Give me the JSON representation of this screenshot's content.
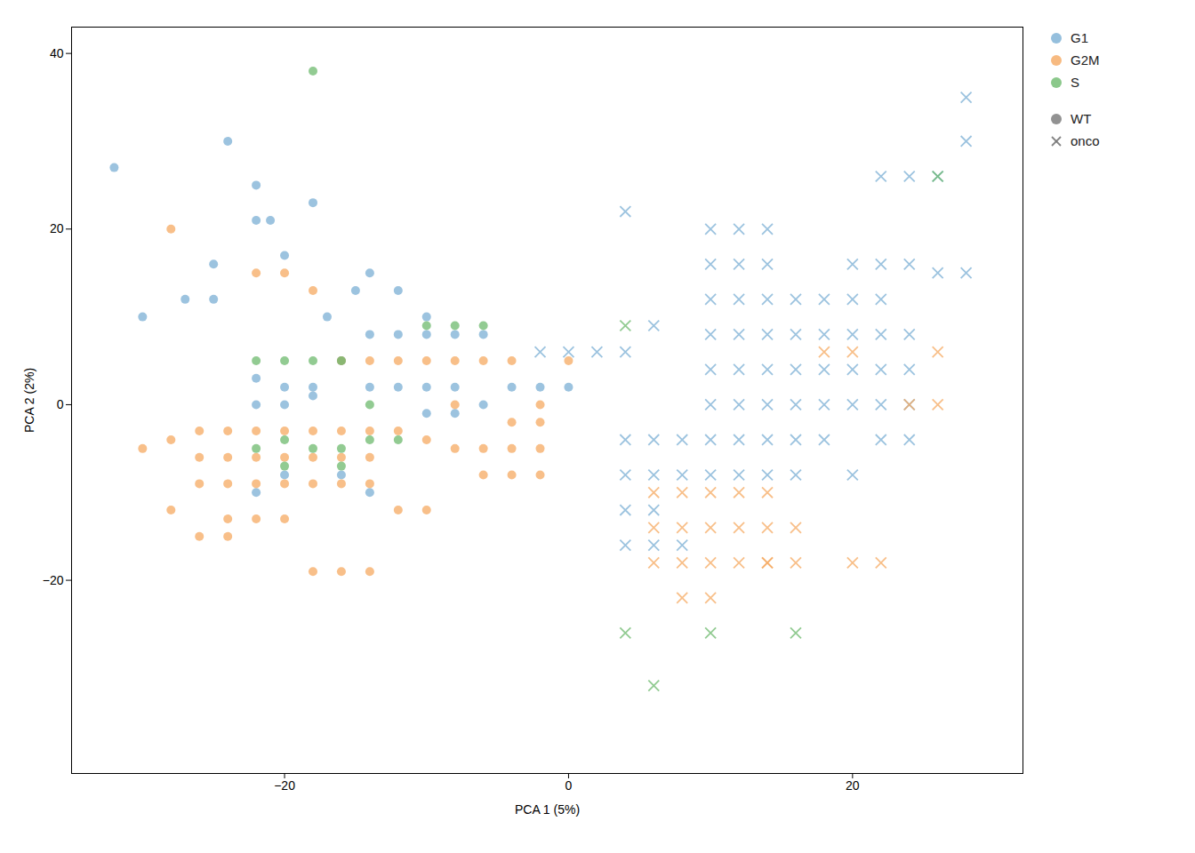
{
  "chart_data": {
    "type": "scatter",
    "xlabel": "PCA 1 (5%)",
    "ylabel": "PCA 2 (2%)",
    "xlim": [
      -35,
      32
    ],
    "ylim": [
      -42,
      43
    ],
    "xticks": [
      -20,
      0,
      20
    ],
    "yticks": [
      -20,
      0,
      20,
      40
    ],
    "grid": false,
    "legend": "upper right",
    "series": [
      {
        "name": "G1",
        "group": "WT",
        "color": "#7BAFD4",
        "marker": "circle",
        "values": [
          [
            -32,
            27
          ],
          [
            -24,
            30
          ],
          [
            -22,
            25
          ],
          [
            -21,
            21
          ],
          [
            -30,
            10
          ],
          [
            -22,
            21
          ],
          [
            -25,
            16
          ],
          [
            -20,
            17
          ],
          [
            -18,
            23
          ],
          [
            -27,
            12
          ],
          [
            -25,
            12
          ],
          [
            -17,
            10
          ],
          [
            -15,
            13
          ],
          [
            -14,
            15
          ],
          [
            -12,
            13
          ],
          [
            -10,
            10
          ],
          [
            -22,
            3
          ],
          [
            -20,
            2
          ],
          [
            -18,
            2
          ],
          [
            -16,
            5
          ],
          [
            -14,
            8
          ],
          [
            -12,
            8
          ],
          [
            -10,
            8
          ],
          [
            -8,
            8
          ],
          [
            -6,
            8
          ],
          [
            -22,
            0
          ],
          [
            -20,
            0
          ],
          [
            -18,
            1
          ],
          [
            -14,
            2
          ],
          [
            -12,
            2
          ],
          [
            -10,
            2
          ],
          [
            -8,
            2
          ],
          [
            -16,
            -8
          ],
          [
            -14,
            -10
          ],
          [
            -22,
            -10
          ],
          [
            -20,
            -8
          ],
          [
            -6,
            0
          ],
          [
            -4,
            2
          ],
          [
            -2,
            2
          ],
          [
            0,
            2
          ],
          [
            -8,
            -1
          ],
          [
            -10,
            -1
          ]
        ]
      },
      {
        "name": "G2M",
        "group": "WT",
        "color": "#F5A962",
        "marker": "circle",
        "values": [
          [
            -28,
            20
          ],
          [
            -26,
            -3
          ],
          [
            -24,
            -3
          ],
          [
            -22,
            -3
          ],
          [
            -20,
            -3
          ],
          [
            -18,
            -3
          ],
          [
            -16,
            -3
          ],
          [
            -14,
            -3
          ],
          [
            -12,
            -3
          ],
          [
            -28,
            -4
          ],
          [
            -26,
            -6
          ],
          [
            -24,
            -6
          ],
          [
            -22,
            -6
          ],
          [
            -20,
            -6
          ],
          [
            -18,
            -6
          ],
          [
            -16,
            -6
          ],
          [
            -14,
            -6
          ],
          [
            -26,
            -9
          ],
          [
            -24,
            -9
          ],
          [
            -22,
            -9
          ],
          [
            -20,
            -9
          ],
          [
            -18,
            -9
          ],
          [
            -16,
            -9
          ],
          [
            -14,
            -9
          ],
          [
            -28,
            -12
          ],
          [
            -24,
            -13
          ],
          [
            -22,
            -13
          ],
          [
            -20,
            -13
          ],
          [
            -18,
            -19
          ],
          [
            -16,
            -19
          ],
          [
            -14,
            -19
          ],
          [
            -30,
            -5
          ],
          [
            -22,
            15
          ],
          [
            -20,
            15
          ],
          [
            -18,
            13
          ],
          [
            -16,
            5
          ],
          [
            -14,
            5
          ],
          [
            -12,
            5
          ],
          [
            -10,
            5
          ],
          [
            -8,
            5
          ],
          [
            -8,
            0
          ],
          [
            -6,
            5
          ],
          [
            -4,
            5
          ],
          [
            -2,
            0
          ],
          [
            0,
            5
          ],
          [
            -4,
            -2
          ],
          [
            -2,
            -2
          ],
          [
            -10,
            -4
          ],
          [
            -8,
            -5
          ],
          [
            -6,
            -5
          ],
          [
            -4,
            -5
          ],
          [
            -2,
            -5
          ],
          [
            -12,
            -12
          ],
          [
            -10,
            -12
          ],
          [
            -6,
            -8
          ],
          [
            -4,
            -8
          ],
          [
            -2,
            -8
          ],
          [
            -26,
            -15
          ],
          [
            -24,
            -15
          ]
        ]
      },
      {
        "name": "S",
        "group": "WT",
        "color": "#6EBA6E",
        "marker": "circle",
        "values": [
          [
            -18,
            38
          ],
          [
            -16,
            5
          ],
          [
            -10,
            9
          ],
          [
            -8,
            9
          ],
          [
            -6,
            9
          ],
          [
            -22,
            5
          ],
          [
            -20,
            5
          ],
          [
            -18,
            5
          ],
          [
            -14,
            0
          ],
          [
            -12,
            -4
          ],
          [
            -20,
            -4
          ],
          [
            -22,
            -5
          ],
          [
            -20,
            -7
          ],
          [
            -16,
            -5
          ],
          [
            -14,
            -4
          ],
          [
            -18,
            -5
          ],
          [
            -16,
            -7
          ]
        ]
      },
      {
        "name": "G1",
        "group": "onco",
        "color": "#7BAFD4",
        "marker": "x",
        "values": [
          [
            4,
            22
          ],
          [
            -2,
            6
          ],
          [
            0,
            6
          ],
          [
            2,
            6
          ],
          [
            4,
            6
          ],
          [
            6,
            9
          ],
          [
            10,
            16
          ],
          [
            12,
            16
          ],
          [
            14,
            16
          ],
          [
            10,
            20
          ],
          [
            12,
            20
          ],
          [
            14,
            20
          ],
          [
            10,
            12
          ],
          [
            12,
            12
          ],
          [
            14,
            12
          ],
          [
            16,
            12
          ],
          [
            10,
            8
          ],
          [
            12,
            8
          ],
          [
            14,
            8
          ],
          [
            16,
            8
          ],
          [
            18,
            8
          ],
          [
            10,
            4
          ],
          [
            12,
            4
          ],
          [
            14,
            4
          ],
          [
            16,
            4
          ],
          [
            18,
            4
          ],
          [
            20,
            4
          ],
          [
            10,
            0
          ],
          [
            12,
            0
          ],
          [
            14,
            0
          ],
          [
            16,
            0
          ],
          [
            18,
            0
          ],
          [
            20,
            0
          ],
          [
            10,
            -4
          ],
          [
            12,
            -4
          ],
          [
            14,
            -4
          ],
          [
            16,
            -4
          ],
          [
            18,
            -4
          ],
          [
            10,
            -8
          ],
          [
            12,
            -8
          ],
          [
            14,
            -8
          ],
          [
            16,
            -8
          ],
          [
            4,
            -4
          ],
          [
            6,
            -4
          ],
          [
            8,
            -4
          ],
          [
            4,
            -8
          ],
          [
            6,
            -8
          ],
          [
            8,
            -8
          ],
          [
            4,
            -12
          ],
          [
            6,
            -12
          ],
          [
            4,
            -16
          ],
          [
            6,
            -16
          ],
          [
            8,
            -16
          ],
          [
            22,
            8
          ],
          [
            24,
            8
          ],
          [
            22,
            4
          ],
          [
            24,
            4
          ],
          [
            22,
            0
          ],
          [
            24,
            0
          ],
          [
            22,
            -4
          ],
          [
            24,
            -4
          ],
          [
            20,
            -8
          ],
          [
            22,
            16
          ],
          [
            22,
            12
          ],
          [
            20,
            12
          ],
          [
            18,
            12
          ],
          [
            20,
            8
          ],
          [
            20,
            16
          ],
          [
            24,
            16
          ],
          [
            26,
            26
          ],
          [
            22,
            26
          ],
          [
            24,
            26
          ],
          [
            28,
            35
          ],
          [
            28,
            30
          ],
          [
            26,
            15
          ],
          [
            28,
            15
          ]
        ]
      },
      {
        "name": "G2M",
        "group": "onco",
        "color": "#F5A962",
        "marker": "x",
        "values": [
          [
            6,
            -14
          ],
          [
            8,
            -14
          ],
          [
            10,
            -14
          ],
          [
            12,
            -14
          ],
          [
            6,
            -18
          ],
          [
            8,
            -18
          ],
          [
            10,
            -18
          ],
          [
            12,
            -18
          ],
          [
            14,
            -18
          ],
          [
            6,
            -10
          ],
          [
            8,
            -10
          ],
          [
            10,
            -10
          ],
          [
            12,
            -10
          ],
          [
            14,
            -10
          ],
          [
            18,
            6
          ],
          [
            20,
            6
          ],
          [
            14,
            -14
          ],
          [
            16,
            -14
          ],
          [
            14,
            -18
          ],
          [
            16,
            -18
          ],
          [
            8,
            -22
          ],
          [
            10,
            -22
          ],
          [
            20,
            -18
          ],
          [
            22,
            -18
          ],
          [
            24,
            0
          ],
          [
            26,
            0
          ],
          [
            26,
            6
          ]
        ]
      },
      {
        "name": "S",
        "group": "onco",
        "color": "#6EBA6E",
        "marker": "x",
        "values": [
          [
            4,
            -26
          ],
          [
            6,
            -32
          ],
          [
            10,
            -26
          ],
          [
            16,
            -26
          ],
          [
            26,
            26
          ],
          [
            4,
            9
          ]
        ]
      }
    ],
    "marker_legend": [
      {
        "name": "WT",
        "marker": "circle",
        "color": "#777777"
      },
      {
        "name": "onco",
        "marker": "x",
        "color": "#777777"
      }
    ]
  }
}
